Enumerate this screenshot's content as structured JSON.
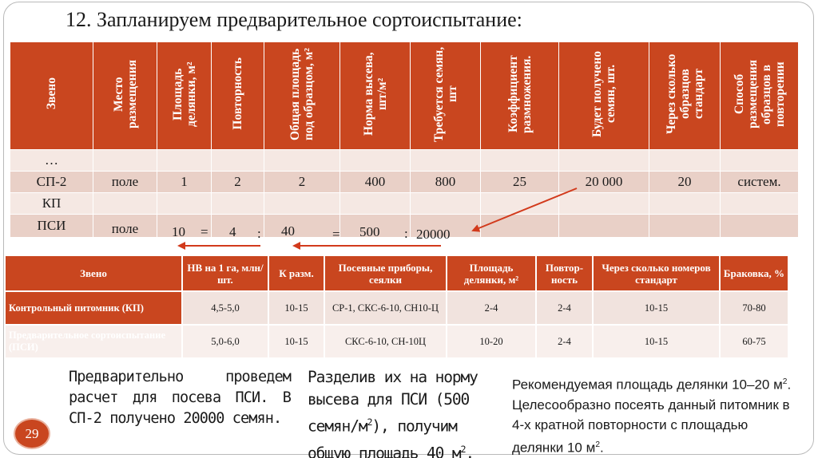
{
  "title": "12. Запланируем предварительное сортоиспытание:",
  "table1": {
    "headers": [
      "Звено",
      "Место размещения",
      "Площадь делянки, м²",
      "Повторность",
      "Общая площадь под образцом, м²",
      "Норма высева, шт/м²",
      "Требуется семян, шт",
      "Коэффициент размножения.",
      "Будет получено семян, шт.",
      "Через сколько образцов стандарт",
      "Способ размещения образцов в повторении"
    ],
    "rows": [
      [
        "…",
        "",
        "",
        "",
        "",
        "",
        "",
        "",
        "",
        "",
        ""
      ],
      [
        "СП-2",
        "поле",
        "1",
        "2",
        "2",
        "400",
        "800",
        "25",
        "20 000",
        "20",
        "систем."
      ],
      [
        "КП",
        "",
        "",
        "",
        "",
        "",
        "",
        "",
        "",
        "",
        ""
      ],
      [
        "ПСИ",
        "поле",
        "",
        "",
        "",
        "",
        "",
        "",
        "",
        "",
        ""
      ]
    ]
  },
  "calc": {
    "a": "10",
    "eq1": "=",
    "b": "4",
    "colon1": ":",
    "c": "40",
    "eq2": "=",
    "d": "500",
    "colon2": ":",
    "e": "20000"
  },
  "table2": {
    "headers": [
      "Звено",
      "НВ на 1 га, млн/шт.",
      "К разм.",
      "Посевные приборы, сеялки",
      "Площадь делянки, м²",
      "Повтор-ность",
      "Через сколько номеров стандарт",
      "Браковка, %"
    ],
    "rows": [
      [
        "Контрольный питомник (КП)",
        "4,5-5,0",
        "10-15",
        "СР-1, СКС-6-10, СН10-Ц",
        "2-4",
        "2-4",
        "10-15",
        "70-80"
      ],
      [
        "Предварительное сортоиспытание (ПСИ)",
        "5,0-6,0",
        "10-15",
        "СКС-6-10, СН-10Ц",
        "10-20",
        "2-4",
        "10-15",
        "60-75"
      ]
    ]
  },
  "text1": "Предварительно проведем расчет для посева ПСИ. В СП-2 получено 20000 семян.",
  "text2_a": "Разделив их на норму высева для ПСИ (500 семян/м",
  "text2_sup": "2",
  "text2_b": "), получим общую площадь 40 м",
  "text2_sup2": "2",
  "text2_c": ".",
  "text3_a": "Рекомендуемая площадь делянки 10–20 м",
  "text3_sup": "2",
  "text3_b": ". Целесообразно посеять данный питомник в 4-х кратной повторности с площадью делянки 10 м",
  "text3_sup2": "2",
  "text3_c": ".",
  "page_number": "29",
  "colors": {
    "accent": "#c9461f",
    "row_light": "#f5e8e3",
    "row_dark": "#e9d0c7"
  }
}
